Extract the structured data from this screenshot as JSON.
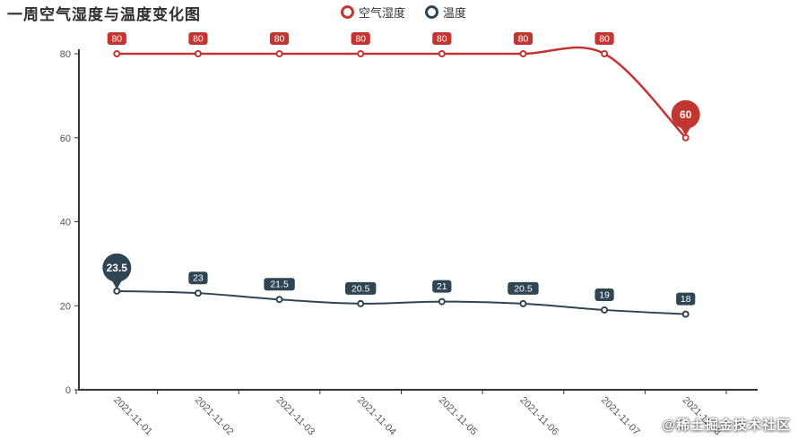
{
  "title": "一周空气湿度与温度变化图",
  "legend": {
    "items": [
      {
        "label": "空气湿度",
        "color": "#c23531"
      },
      {
        "label": "温度",
        "color": "#2f4554"
      }
    ]
  },
  "watermark": "@稀土掘金技术社区",
  "chart_data": {
    "type": "line",
    "title": "一周空气湿度与温度变化图",
    "categories": [
      "2021-11-01",
      "2021-11-02",
      "2021-11-03",
      "2021-11-04",
      "2021-11-05",
      "2021-11-06",
      "2021-11-07",
      "2021-11-08"
    ],
    "series": [
      {
        "name": "空气湿度",
        "color": "#c23531",
        "values": [
          80,
          80,
          80,
          80,
          80,
          80,
          80,
          60
        ],
        "point_labels": [
          "80",
          "80",
          "80",
          "80",
          "80",
          "80",
          "80",
          null
        ],
        "pin": {
          "index": 7,
          "label": "60"
        }
      },
      {
        "name": "温度",
        "color": "#2f4554",
        "values": [
          23.5,
          23,
          21.5,
          20.5,
          21,
          20.5,
          19,
          18
        ],
        "point_labels": [
          null,
          "23",
          "21.5",
          "20.5",
          "21",
          "20.5",
          "19",
          "18"
        ],
        "pin": {
          "index": 0,
          "label": "23.5"
        }
      }
    ],
    "xlabel": "",
    "ylabel": "",
    "ylim": [
      0,
      80
    ],
    "yticks": [
      0,
      20,
      40,
      60,
      80
    ],
    "grid": false,
    "legend_position": "top",
    "axis_color": "#333333",
    "tick_label_color": "#555555"
  }
}
